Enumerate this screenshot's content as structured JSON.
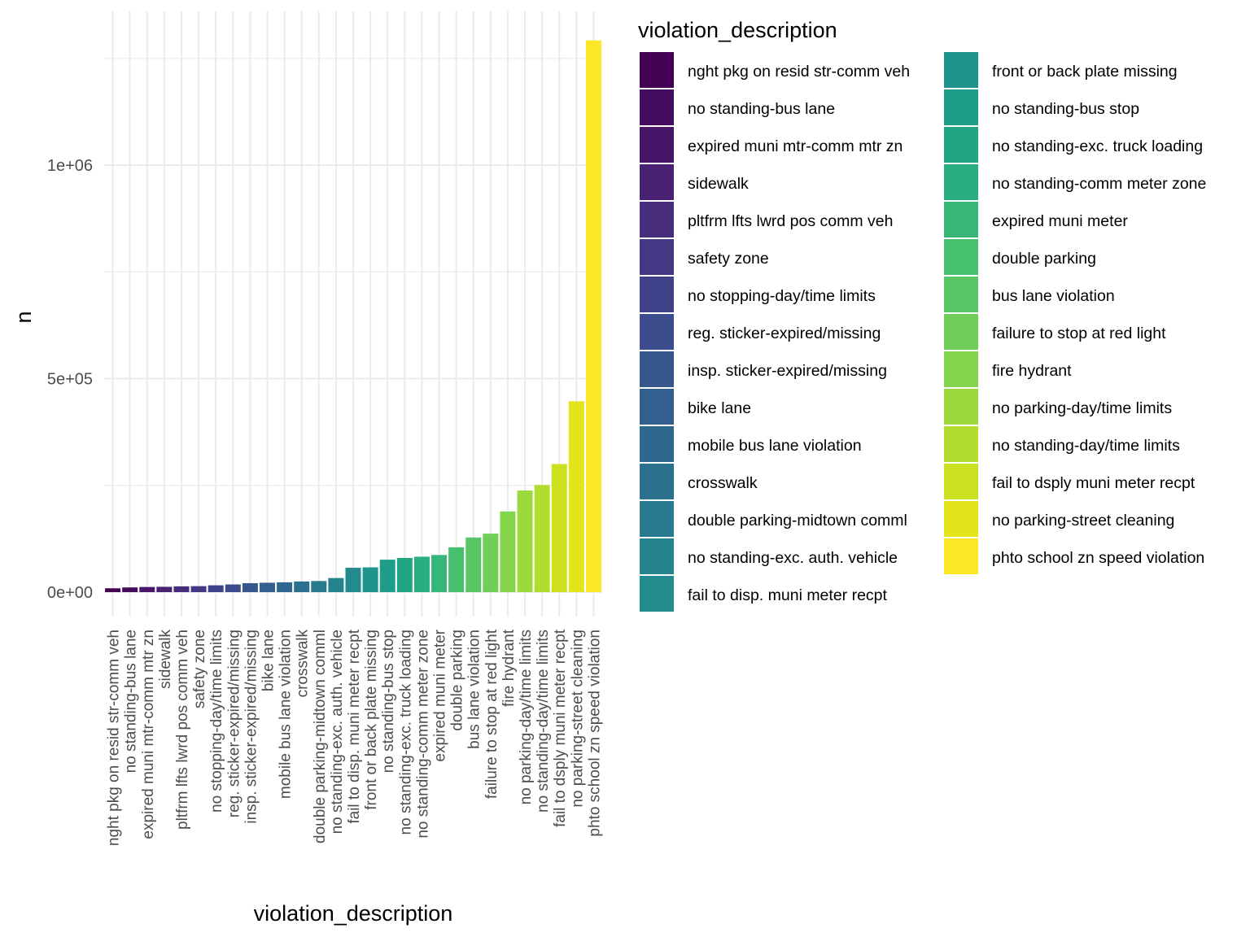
{
  "chart_data": {
    "type": "bar",
    "title": "",
    "xlabel": "violation_description",
    "ylabel": "n",
    "ylim": [
      -55000,
      1300000
    ],
    "yticks": [
      {
        "value": 0,
        "label": "0e+00"
      },
      {
        "value": 500000,
        "label": "5e+05"
      },
      {
        "value": 1000000,
        "label": "1e+06"
      }
    ],
    "grid": true,
    "legend_title": "violation_description",
    "legend_placement": "right",
    "categories": [
      "nght pkg on resid str-comm veh",
      "no standing-bus lane",
      "expired muni mtr-comm mtr zn",
      "sidewalk",
      "pltfrm lfts lwrd pos comm veh",
      "safety zone",
      "no stopping-day/time limits",
      "reg. sticker-expired/missing",
      "insp. sticker-expired/missing",
      "bike lane",
      "mobile bus lane violation",
      "crosswalk",
      "double parking-midtown comml",
      "no standing-exc. auth. vehicle",
      "fail to disp. muni meter recpt",
      "front or back plate missing",
      "no standing-bus stop",
      "no standing-exc. truck loading",
      "no standing-comm meter zone",
      "expired muni meter",
      "double parking",
      "bus lane violation",
      "failure to stop at red light",
      "fire hydrant",
      "no parking-day/time limits",
      "no standing-day/time limits",
      "fail to dsply muni meter recpt",
      "no parking-street cleaning",
      "phto school zn speed violation"
    ],
    "values": [
      9000,
      11000,
      12000,
      12500,
      13500,
      14000,
      16000,
      18000,
      21000,
      22000,
      23000,
      25000,
      26000,
      33000,
      57000,
      58000,
      76000,
      80000,
      83000,
      87000,
      105000,
      128000,
      137000,
      189000,
      238000,
      251000,
      300000,
      447000,
      1292000
    ],
    "colors": [
      "#440154",
      "#450B5E",
      "#471668",
      "#482173",
      "#472D7B",
      "#433883",
      "#3F4289",
      "#3B4B8B",
      "#36568C",
      "#325F8D",
      "#2E688E",
      "#2B718E",
      "#287A8E",
      "#25838E",
      "#228B8D",
      "#1F948C",
      "#1E9D89",
      "#21A685",
      "#29AF7F",
      "#36B778",
      "#46BF6F",
      "#59C765",
      "#6ECE58",
      "#84D44B",
      "#9BD93C",
      "#B3DD2E",
      "#CBE11F",
      "#E3E419",
      "#FDE725"
    ]
  }
}
